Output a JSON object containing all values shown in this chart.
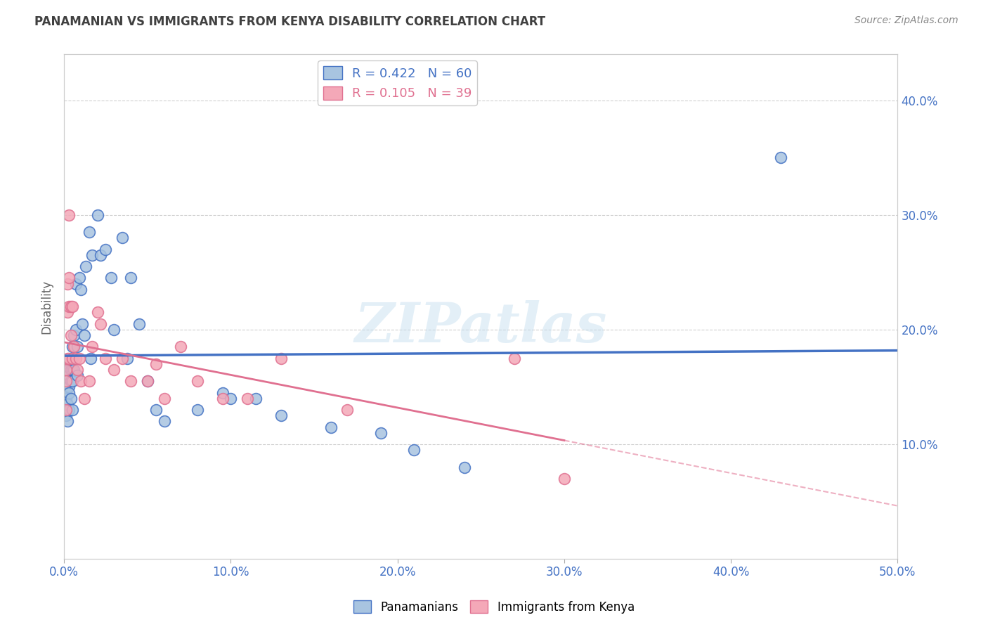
{
  "title": "PANAMANIAN VS IMMIGRANTS FROM KENYA DISABILITY CORRELATION CHART",
  "source": "Source: ZipAtlas.com",
  "ylabel": "Disability",
  "xlim": [
    0.0,
    0.5
  ],
  "ylim": [
    0.0,
    0.44
  ],
  "xticks": [
    0.0,
    0.1,
    0.2,
    0.3,
    0.4,
    0.5
  ],
  "xtick_labels": [
    "0.0%",
    "10.0%",
    "20.0%",
    "30.0%",
    "40.0%",
    "50.0%"
  ],
  "ytick_labels": [
    "10.0%",
    "20.0%",
    "30.0%",
    "40.0%"
  ],
  "yticks": [
    0.1,
    0.2,
    0.3,
    0.4
  ],
  "blue_R": 0.422,
  "blue_N": 60,
  "pink_R": 0.105,
  "pink_N": 39,
  "blue_color": "#a8c4e0",
  "pink_color": "#f4a8b8",
  "blue_line_color": "#4472c4",
  "pink_line_color": "#e07090",
  "title_color": "#404040",
  "axis_label_color": "#4472c4",
  "legend_R_color": "#4472c4",
  "background_color": "#ffffff",
  "grid_color": "#d0d0d0",
  "watermark": "ZIPatlas",
  "blue_x": [
    0.001,
    0.001,
    0.001,
    0.001,
    0.001,
    0.002,
    0.002,
    0.002,
    0.002,
    0.002,
    0.003,
    0.003,
    0.003,
    0.003,
    0.003,
    0.003,
    0.004,
    0.004,
    0.004,
    0.004,
    0.005,
    0.005,
    0.005,
    0.005,
    0.006,
    0.006,
    0.007,
    0.007,
    0.008,
    0.008,
    0.009,
    0.01,
    0.011,
    0.012,
    0.013,
    0.015,
    0.016,
    0.017,
    0.02,
    0.022,
    0.025,
    0.028,
    0.03,
    0.035,
    0.038,
    0.04,
    0.045,
    0.05,
    0.055,
    0.06,
    0.08,
    0.095,
    0.1,
    0.115,
    0.13,
    0.16,
    0.19,
    0.21,
    0.24,
    0.43
  ],
  "blue_y": [
    0.155,
    0.15,
    0.145,
    0.14,
    0.125,
    0.16,
    0.155,
    0.15,
    0.135,
    0.12,
    0.17,
    0.165,
    0.16,
    0.15,
    0.145,
    0.13,
    0.175,
    0.165,
    0.155,
    0.14,
    0.185,
    0.165,
    0.155,
    0.13,
    0.195,
    0.165,
    0.24,
    0.2,
    0.185,
    0.16,
    0.245,
    0.235,
    0.205,
    0.195,
    0.255,
    0.285,
    0.175,
    0.265,
    0.3,
    0.265,
    0.27,
    0.245,
    0.2,
    0.28,
    0.175,
    0.245,
    0.205,
    0.155,
    0.13,
    0.12,
    0.13,
    0.145,
    0.14,
    0.14,
    0.125,
    0.115,
    0.11,
    0.095,
    0.08,
    0.35
  ],
  "pink_x": [
    0.001,
    0.001,
    0.001,
    0.002,
    0.002,
    0.002,
    0.003,
    0.003,
    0.003,
    0.003,
    0.004,
    0.004,
    0.005,
    0.005,
    0.006,
    0.007,
    0.008,
    0.009,
    0.01,
    0.012,
    0.015,
    0.017,
    0.02,
    0.022,
    0.025,
    0.03,
    0.035,
    0.04,
    0.05,
    0.055,
    0.06,
    0.07,
    0.08,
    0.095,
    0.11,
    0.13,
    0.17,
    0.27,
    0.3
  ],
  "pink_y": [
    0.165,
    0.155,
    0.13,
    0.24,
    0.215,
    0.175,
    0.3,
    0.245,
    0.22,
    0.175,
    0.22,
    0.195,
    0.22,
    0.175,
    0.185,
    0.175,
    0.165,
    0.175,
    0.155,
    0.14,
    0.155,
    0.185,
    0.215,
    0.205,
    0.175,
    0.165,
    0.175,
    0.155,
    0.155,
    0.17,
    0.14,
    0.185,
    0.155,
    0.14,
    0.14,
    0.175,
    0.13,
    0.175,
    0.07
  ]
}
